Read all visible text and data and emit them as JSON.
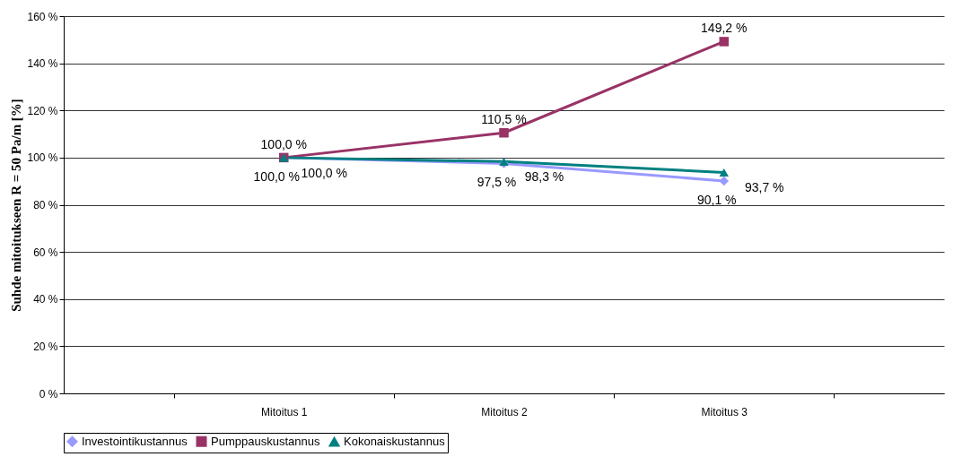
{
  "chart_data": {
    "type": "line",
    "ylabel": "Suhde mitoitukseen R = 50 Pa/m [%]",
    "categories": [
      "Mitoitus 1",
      "Mitoitus 2",
      "Mitoitus 3"
    ],
    "series": [
      {
        "name": "Investointikustannus",
        "color": "#9999ff",
        "marker": "diamond",
        "values": [
          100,
          97.5,
          90.1
        ],
        "value_labels": [
          "100,0 %",
          "97,5 %",
          "90,1 %"
        ]
      },
      {
        "name": "Pumppauskustannus",
        "color": "#993366",
        "marker": "square",
        "values": [
          100,
          110.5,
          149.2
        ],
        "value_labels": [
          "100,0 %",
          "110,5 %",
          "149,2 %"
        ]
      },
      {
        "name": "Kokonaiskustannus",
        "color": "#008080",
        "marker": "triangle",
        "values": [
          100,
          98.3,
          93.7
        ],
        "value_labels": [
          "100,0 %",
          "98,3 %",
          "93,7 %"
        ]
      }
    ],
    "ylim": [
      0,
      160
    ],
    "yticks": [
      {
        "value": 0,
        "label": "0 %"
      },
      {
        "value": 20,
        "label": "20 %"
      },
      {
        "value": 40,
        "label": "40 %"
      },
      {
        "value": 60,
        "label": "60 %"
      },
      {
        "value": 80,
        "label": "80 %"
      },
      {
        "value": 100,
        "label": "100 %"
      },
      {
        "value": 120,
        "label": "120 %"
      },
      {
        "value": 140,
        "label": "140 %"
      },
      {
        "value": 160,
        "label": "160 %"
      }
    ],
    "grid": "y",
    "legend": "bottom",
    "line_style": "solid"
  }
}
